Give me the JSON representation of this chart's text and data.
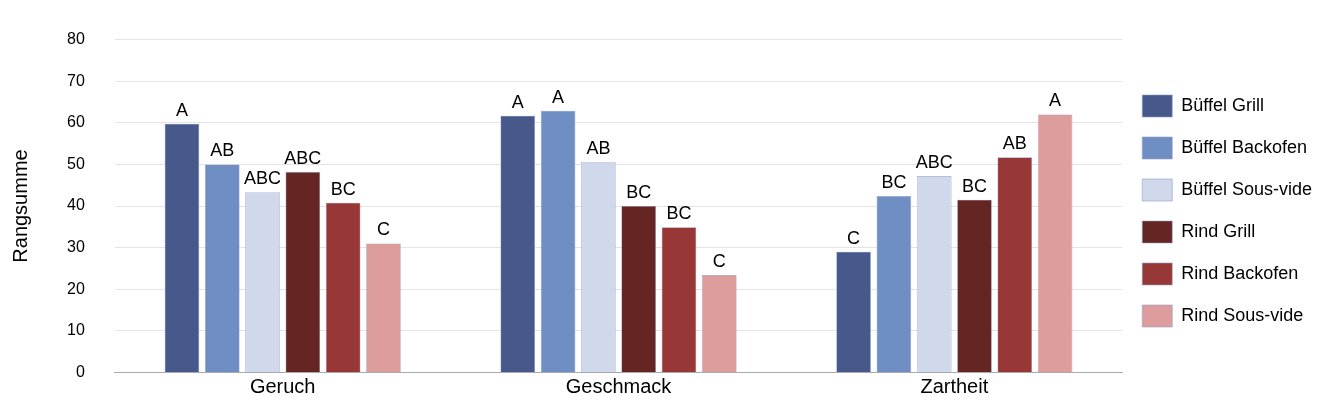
{
  "chart_data": {
    "type": "bar",
    "ylabel": "Rangsumme",
    "categories": [
      "Geruch",
      "Geschmack",
      "Zartheit"
    ],
    "ylim": [
      0,
      80
    ],
    "yticks": [
      0,
      10,
      20,
      30,
      40,
      50,
      60,
      70,
      80
    ],
    "grid": "y",
    "legend": "right",
    "series": [
      {
        "name": "Büffel Grill",
        "color": "#46598a",
        "values": [
          59.8,
          61.7,
          29.0
        ],
        "value_labels": [
          "A",
          "A",
          "C"
        ]
      },
      {
        "name": "Büffel Backofen",
        "color": "#6f8ec4",
        "values": [
          50.0,
          62.9,
          42.4
        ],
        "value_labels": [
          "AB",
          "A",
          "BC"
        ]
      },
      {
        "name": "Büffel Sous-vide",
        "color": "#d0d9ec",
        "values": [
          43.3,
          50.6,
          47.2
        ],
        "value_labels": [
          "ABC",
          "AB",
          "ABC"
        ]
      },
      {
        "name": "Rind Grill",
        "color": "#652623",
        "values": [
          48.2,
          40.0,
          41.5
        ],
        "value_labels": [
          "ABC",
          "BC",
          "BC"
        ]
      },
      {
        "name": "Rind Backofen",
        "color": "#973836",
        "values": [
          40.8,
          34.9,
          51.7
        ],
        "value_labels": [
          "BC",
          "BC",
          "AB"
        ]
      },
      {
        "name": "Rind Sous-vide",
        "color": "#de9d9d",
        "values": [
          31.0,
          23.4,
          62.0
        ],
        "value_labels": [
          "C",
          "C",
          "A"
        ]
      }
    ]
  }
}
